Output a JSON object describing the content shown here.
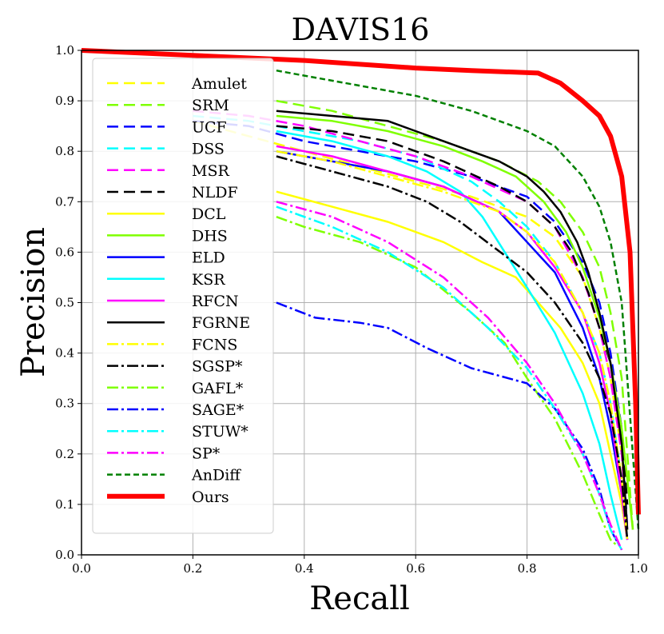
{
  "chart_data": {
    "type": "line",
    "title": "DAVIS16",
    "xlabel": "Recall",
    "ylabel": "Precision",
    "xlim": [
      0.0,
      1.0
    ],
    "ylim": [
      0.0,
      1.0
    ],
    "grid": true,
    "legend_position": "top-left",
    "xticks": [
      "0.0",
      "0.2",
      "0.4",
      "0.6",
      "0.8",
      "1.0"
    ],
    "yticks": [
      "0.0",
      "0.1",
      "0.2",
      "0.3",
      "0.4",
      "0.5",
      "0.6",
      "0.7",
      "0.8",
      "0.9",
      "1.0"
    ],
    "series": [
      {
        "name": "Amulet",
        "color": "#ffff00",
        "style": "dashed",
        "width": "normal",
        "points": [
          [
            0.2,
            0.86
          ],
          [
            0.3,
            0.83
          ],
          [
            0.4,
            0.8
          ],
          [
            0.5,
            0.77
          ],
          [
            0.6,
            0.74
          ],
          [
            0.7,
            0.71
          ],
          [
            0.8,
            0.67
          ],
          [
            0.85,
            0.63
          ],
          [
            0.9,
            0.55
          ],
          [
            0.93,
            0.45
          ],
          [
            0.95,
            0.35
          ],
          [
            0.97,
            0.2
          ],
          [
            0.98,
            0.05
          ]
        ]
      },
      {
        "name": "SRM",
        "color": "#7fff00",
        "style": "dashed",
        "width": "normal",
        "points": [
          [
            0.35,
            0.9
          ],
          [
            0.45,
            0.88
          ],
          [
            0.55,
            0.85
          ],
          [
            0.65,
            0.82
          ],
          [
            0.75,
            0.78
          ],
          [
            0.82,
            0.74
          ],
          [
            0.86,
            0.7
          ],
          [
            0.9,
            0.64
          ],
          [
            0.93,
            0.57
          ],
          [
            0.95,
            0.48
          ],
          [
            0.97,
            0.35
          ],
          [
            0.98,
            0.2
          ],
          [
            0.99,
            0.05
          ]
        ]
      },
      {
        "name": "UCF",
        "color": "#0000ff",
        "style": "dashed",
        "width": "normal",
        "points": [
          [
            0.2,
            0.86
          ],
          [
            0.3,
            0.85
          ],
          [
            0.4,
            0.82
          ],
          [
            0.5,
            0.8
          ],
          [
            0.6,
            0.78
          ],
          [
            0.7,
            0.75
          ],
          [
            0.8,
            0.71
          ],
          [
            0.85,
            0.66
          ],
          [
            0.9,
            0.58
          ],
          [
            0.93,
            0.5
          ],
          [
            0.95,
            0.4
          ],
          [
            0.97,
            0.25
          ],
          [
            0.98,
            0.05
          ]
        ]
      },
      {
        "name": "DSS",
        "color": "#00ffff",
        "style": "dashed",
        "width": "normal",
        "points": [
          [
            0.2,
            0.87
          ],
          [
            0.3,
            0.86
          ],
          [
            0.4,
            0.84
          ],
          [
            0.5,
            0.82
          ],
          [
            0.6,
            0.79
          ],
          [
            0.7,
            0.74
          ],
          [
            0.75,
            0.7
          ],
          [
            0.8,
            0.65
          ],
          [
            0.85,
            0.58
          ],
          [
            0.9,
            0.48
          ],
          [
            0.93,
            0.4
          ],
          [
            0.95,
            0.3
          ],
          [
            0.97,
            0.15
          ],
          [
            0.98,
            0.05
          ]
        ]
      },
      {
        "name": "MSR",
        "color": "#ff00ff",
        "style": "dashed",
        "width": "normal",
        "points": [
          [
            0.2,
            0.88
          ],
          [
            0.3,
            0.87
          ],
          [
            0.4,
            0.85
          ],
          [
            0.5,
            0.82
          ],
          [
            0.6,
            0.79
          ],
          [
            0.7,
            0.75
          ],
          [
            0.8,
            0.7
          ],
          [
            0.85,
            0.65
          ],
          [
            0.9,
            0.55
          ],
          [
            0.93,
            0.45
          ],
          [
            0.95,
            0.35
          ],
          [
            0.97,
            0.2
          ],
          [
            0.98,
            0.05
          ]
        ]
      },
      {
        "name": "NLDF",
        "color": "#000000",
        "style": "dashed",
        "width": "normal",
        "points": [
          [
            0.35,
            0.85
          ],
          [
            0.45,
            0.84
          ],
          [
            0.55,
            0.82
          ],
          [
            0.65,
            0.78
          ],
          [
            0.75,
            0.73
          ],
          [
            0.8,
            0.7
          ],
          [
            0.85,
            0.65
          ],
          [
            0.88,
            0.6
          ],
          [
            0.91,
            0.52
          ],
          [
            0.93,
            0.45
          ],
          [
            0.95,
            0.38
          ],
          [
            0.97,
            0.25
          ],
          [
            0.98,
            0.1
          ]
        ]
      },
      {
        "name": "DCL",
        "color": "#ffff00",
        "style": "solid",
        "width": "normal",
        "points": [
          [
            0.35,
            0.72
          ],
          [
            0.45,
            0.69
          ],
          [
            0.55,
            0.66
          ],
          [
            0.65,
            0.62
          ],
          [
            0.72,
            0.58
          ],
          [
            0.78,
            0.55
          ],
          [
            0.82,
            0.5
          ],
          [
            0.86,
            0.45
          ],
          [
            0.9,
            0.38
          ],
          [
            0.93,
            0.3
          ],
          [
            0.95,
            0.2
          ],
          [
            0.97,
            0.1
          ],
          [
            0.98,
            0.03
          ]
        ]
      },
      {
        "name": "DHS",
        "color": "#7fff00",
        "style": "solid",
        "width": "normal",
        "points": [
          [
            0.35,
            0.87
          ],
          [
            0.45,
            0.86
          ],
          [
            0.55,
            0.84
          ],
          [
            0.65,
            0.81
          ],
          [
            0.72,
            0.78
          ],
          [
            0.78,
            0.75
          ],
          [
            0.83,
            0.7
          ],
          [
            0.87,
            0.64
          ],
          [
            0.9,
            0.57
          ],
          [
            0.93,
            0.47
          ],
          [
            0.95,
            0.38
          ],
          [
            0.97,
            0.25
          ],
          [
            0.99,
            0.05
          ]
        ]
      },
      {
        "name": "ELD",
        "color": "#0000ff",
        "style": "solid",
        "width": "normal",
        "points": [
          [
            0.35,
            0.8
          ],
          [
            0.45,
            0.78
          ],
          [
            0.55,
            0.76
          ],
          [
            0.65,
            0.73
          ],
          [
            0.75,
            0.68
          ],
          [
            0.8,
            0.62
          ],
          [
            0.85,
            0.56
          ],
          [
            0.9,
            0.45
          ],
          [
            0.93,
            0.35
          ],
          [
            0.95,
            0.25
          ],
          [
            0.97,
            0.12
          ],
          [
            0.98,
            0.03
          ]
        ]
      },
      {
        "name": "KSR",
        "color": "#00ffff",
        "style": "solid",
        "width": "normal",
        "points": [
          [
            0.35,
            0.84
          ],
          [
            0.45,
            0.82
          ],
          [
            0.55,
            0.79
          ],
          [
            0.62,
            0.76
          ],
          [
            0.68,
            0.72
          ],
          [
            0.72,
            0.67
          ],
          [
            0.76,
            0.6
          ],
          [
            0.8,
            0.53
          ],
          [
            0.85,
            0.44
          ],
          [
            0.9,
            0.32
          ],
          [
            0.93,
            0.22
          ],
          [
            0.95,
            0.12
          ],
          [
            0.97,
            0.03
          ]
        ]
      },
      {
        "name": "RFCN",
        "color": "#ff00ff",
        "style": "solid",
        "width": "normal",
        "points": [
          [
            0.35,
            0.81
          ],
          [
            0.45,
            0.79
          ],
          [
            0.55,
            0.76
          ],
          [
            0.65,
            0.73
          ],
          [
            0.75,
            0.68
          ],
          [
            0.8,
            0.64
          ],
          [
            0.85,
            0.57
          ],
          [
            0.9,
            0.48
          ],
          [
            0.93,
            0.38
          ],
          [
            0.95,
            0.28
          ],
          [
            0.97,
            0.12
          ],
          [
            0.98,
            0.03
          ]
        ]
      },
      {
        "name": "FGRNE",
        "color": "#000000",
        "style": "solid",
        "width": "normal",
        "points": [
          [
            0.35,
            0.88
          ],
          [
            0.45,
            0.87
          ],
          [
            0.55,
            0.86
          ],
          [
            0.6,
            0.84
          ],
          [
            0.65,
            0.82
          ],
          [
            0.7,
            0.8
          ],
          [
            0.75,
            0.78
          ],
          [
            0.8,
            0.75
          ],
          [
            0.83,
            0.72
          ],
          [
            0.86,
            0.68
          ],
          [
            0.89,
            0.62
          ],
          [
            0.91,
            0.56
          ],
          [
            0.93,
            0.48
          ],
          [
            0.95,
            0.38
          ],
          [
            0.97,
            0.22
          ],
          [
            0.98,
            0.05
          ]
        ]
      },
      {
        "name": "FCNS",
        "color": "#ffff00",
        "style": "dashdot",
        "width": "normal",
        "points": [
          [
            0.35,
            0.8
          ],
          [
            0.45,
            0.78
          ],
          [
            0.55,
            0.75
          ],
          [
            0.65,
            0.72
          ],
          [
            0.75,
            0.68
          ],
          [
            0.8,
            0.64
          ],
          [
            0.85,
            0.58
          ],
          [
            0.9,
            0.48
          ],
          [
            0.93,
            0.4
          ],
          [
            0.95,
            0.3
          ],
          [
            0.97,
            0.15
          ],
          [
            0.98,
            0.03
          ]
        ]
      },
      {
        "name": "SGSP*",
        "color": "#000000",
        "style": "dashdot",
        "width": "normal",
        "points": [
          [
            0.35,
            0.79
          ],
          [
            0.45,
            0.76
          ],
          [
            0.55,
            0.73
          ],
          [
            0.62,
            0.7
          ],
          [
            0.68,
            0.66
          ],
          [
            0.74,
            0.61
          ],
          [
            0.8,
            0.56
          ],
          [
            0.85,
            0.5
          ],
          [
            0.9,
            0.42
          ],
          [
            0.93,
            0.35
          ],
          [
            0.95,
            0.28
          ],
          [
            0.97,
            0.15
          ],
          [
            0.98,
            0.03
          ]
        ]
      },
      {
        "name": "GAFL*",
        "color": "#7fff00",
        "style": "dashdot",
        "width": "normal",
        "points": [
          [
            0.35,
            0.67
          ],
          [
            0.4,
            0.65
          ],
          [
            0.5,
            0.62
          ],
          [
            0.6,
            0.57
          ],
          [
            0.7,
            0.48
          ],
          [
            0.76,
            0.42
          ],
          [
            0.8,
            0.35
          ],
          [
            0.85,
            0.27
          ],
          [
            0.9,
            0.16
          ],
          [
            0.93,
            0.08
          ],
          [
            0.95,
            0.03
          ],
          [
            0.96,
            0.02
          ]
        ]
      },
      {
        "name": "SAGE*",
        "color": "#0000ff",
        "style": "dashdot",
        "width": "normal",
        "points": [
          [
            0.35,
            0.5
          ],
          [
            0.42,
            0.47
          ],
          [
            0.5,
            0.46
          ],
          [
            0.55,
            0.45
          ],
          [
            0.62,
            0.41
          ],
          [
            0.7,
            0.37
          ],
          [
            0.8,
            0.34
          ],
          [
            0.85,
            0.29
          ],
          [
            0.9,
            0.21
          ],
          [
            0.93,
            0.13
          ],
          [
            0.95,
            0.05
          ],
          [
            0.97,
            0.01
          ]
        ]
      },
      {
        "name": "STUW*",
        "color": "#00ffff",
        "style": "dashdot",
        "width": "normal",
        "points": [
          [
            0.35,
            0.69
          ],
          [
            0.45,
            0.65
          ],
          [
            0.55,
            0.6
          ],
          [
            0.65,
            0.53
          ],
          [
            0.73,
            0.45
          ],
          [
            0.8,
            0.37
          ],
          [
            0.85,
            0.29
          ],
          [
            0.9,
            0.2
          ],
          [
            0.93,
            0.12
          ],
          [
            0.95,
            0.05
          ],
          [
            0.97,
            0.01
          ]
        ]
      },
      {
        "name": "SP*",
        "color": "#ff00ff",
        "style": "dashdot",
        "width": "normal",
        "points": [
          [
            0.35,
            0.7
          ],
          [
            0.45,
            0.67
          ],
          [
            0.55,
            0.62
          ],
          [
            0.65,
            0.55
          ],
          [
            0.73,
            0.47
          ],
          [
            0.8,
            0.38
          ],
          [
            0.85,
            0.3
          ],
          [
            0.9,
            0.2
          ],
          [
            0.93,
            0.12
          ],
          [
            0.95,
            0.06
          ],
          [
            0.97,
            0.01
          ]
        ]
      },
      {
        "name": "AnDiff",
        "color": "#008000",
        "style": "shortdash",
        "width": "normal",
        "points": [
          [
            0.35,
            0.96
          ],
          [
            0.4,
            0.95
          ],
          [
            0.5,
            0.93
          ],
          [
            0.6,
            0.91
          ],
          [
            0.7,
            0.88
          ],
          [
            0.8,
            0.84
          ],
          [
            0.85,
            0.81
          ],
          [
            0.9,
            0.75
          ],
          [
            0.93,
            0.69
          ],
          [
            0.95,
            0.62
          ],
          [
            0.97,
            0.5
          ],
          [
            0.99,
            0.2
          ],
          [
            1.0,
            0.05
          ]
        ]
      },
      {
        "name": "Ours",
        "color": "#ff0000",
        "style": "solid",
        "width": "thick",
        "points": [
          [
            0.0,
            1.0
          ],
          [
            0.2,
            0.99
          ],
          [
            0.4,
            0.98
          ],
          [
            0.6,
            0.965
          ],
          [
            0.7,
            0.96
          ],
          [
            0.82,
            0.955
          ],
          [
            0.86,
            0.935
          ],
          [
            0.9,
            0.9
          ],
          [
            0.93,
            0.87
          ],
          [
            0.95,
            0.83
          ],
          [
            0.97,
            0.75
          ],
          [
            0.985,
            0.6
          ],
          [
            0.995,
            0.3
          ],
          [
            1.0,
            0.08
          ]
        ]
      }
    ]
  }
}
